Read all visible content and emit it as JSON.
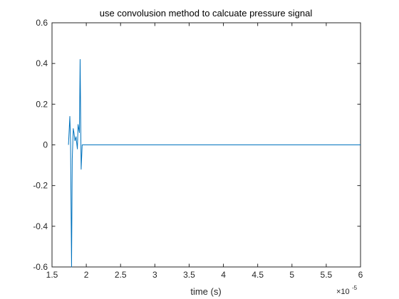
{
  "chart_data": {
    "type": "line",
    "title": "use convolusion method to calcuate pressure signal",
    "xlabel": "time (s)",
    "ylabel": "",
    "x_exponent_base": "×10",
    "x_exponent_power": "-5",
    "xlim": [
      1.5,
      6
    ],
    "ylim": [
      -0.6,
      0.6
    ],
    "xticks": [
      1.5,
      2,
      2.5,
      3,
      3.5,
      4,
      4.5,
      5,
      5.5,
      6
    ],
    "xtick_labels": [
      "1.5",
      "2",
      "2.5",
      "3",
      "3.5",
      "4",
      "4.5",
      "5",
      "5.5",
      "6"
    ],
    "yticks": [
      -0.6,
      -0.4,
      -0.2,
      0,
      0.2,
      0.4,
      0.6
    ],
    "ytick_labels": [
      "-0.6",
      "-0.4",
      "-0.2",
      "0",
      "0.2",
      "0.4",
      "0.6"
    ],
    "grid": false,
    "line_color": "#0072bd",
    "series": [
      {
        "x": [
          1.74,
          1.76,
          1.77,
          1.785,
          1.795,
          1.81,
          1.82,
          1.835,
          1.85,
          1.87,
          1.88,
          1.9,
          1.91,
          1.925,
          1.94,
          1.955,
          1.97,
          2.0,
          6.0
        ],
        "y": [
          0.0,
          0.14,
          0.02,
          -0.6,
          -0.07,
          0.08,
          0.06,
          0.02,
          0.04,
          -0.02,
          0.1,
          0.06,
          0.42,
          -0.12,
          0.0,
          0.0,
          0.0,
          0.0,
          0.0
        ]
      }
    ]
  }
}
